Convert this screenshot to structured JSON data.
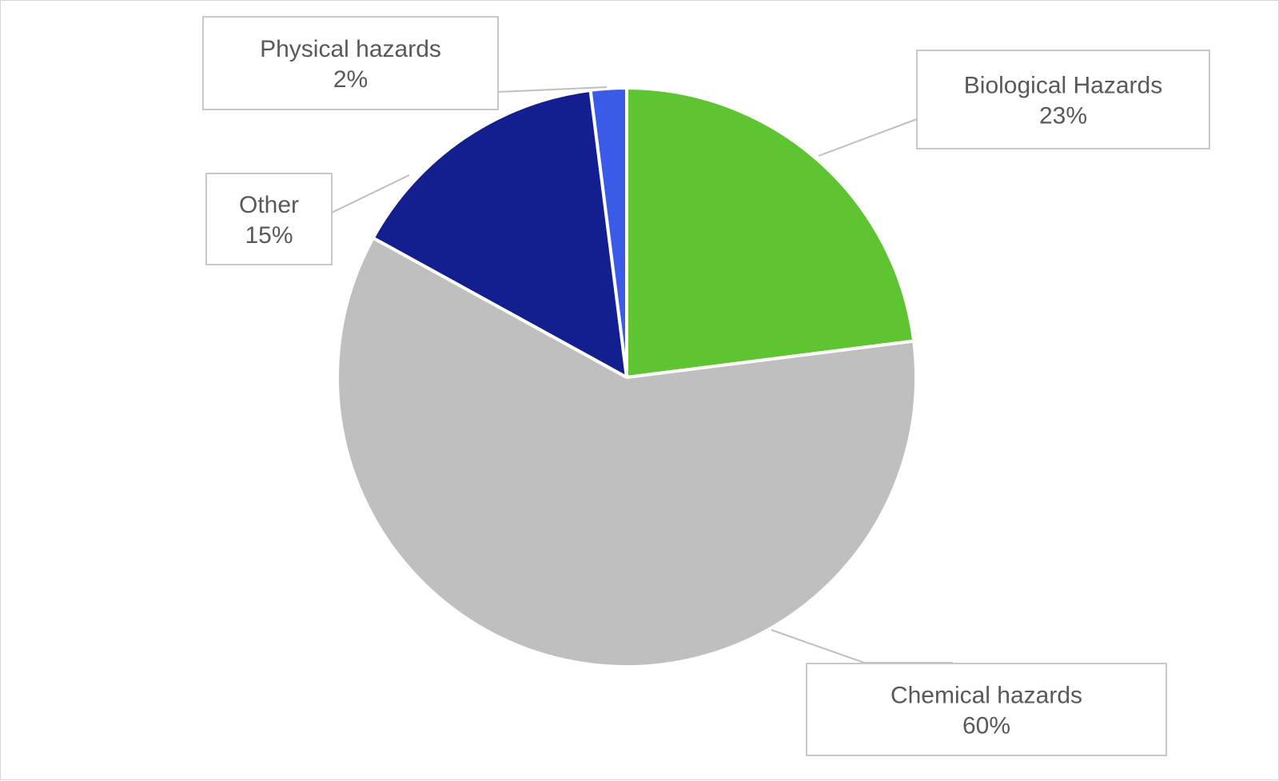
{
  "chart_data": {
    "type": "pie",
    "title": "",
    "start_angle_deg": 0,
    "direction": "clockwise",
    "slices": [
      {
        "label": "Biological Hazards",
        "value": 23,
        "value_label": "23%",
        "color": "#5fc431"
      },
      {
        "label": "Chemical hazards",
        "value": 60,
        "value_label": "60%",
        "color": "#bfbfbf"
      },
      {
        "label": "Other",
        "value": 15,
        "value_label": "15%",
        "color": "#131f8f"
      },
      {
        "label": "Physical hazards",
        "value": 2,
        "value_label": "2%",
        "color": "#3a5ae8"
      }
    ],
    "legend": "none",
    "data_labels": "callouts"
  }
}
